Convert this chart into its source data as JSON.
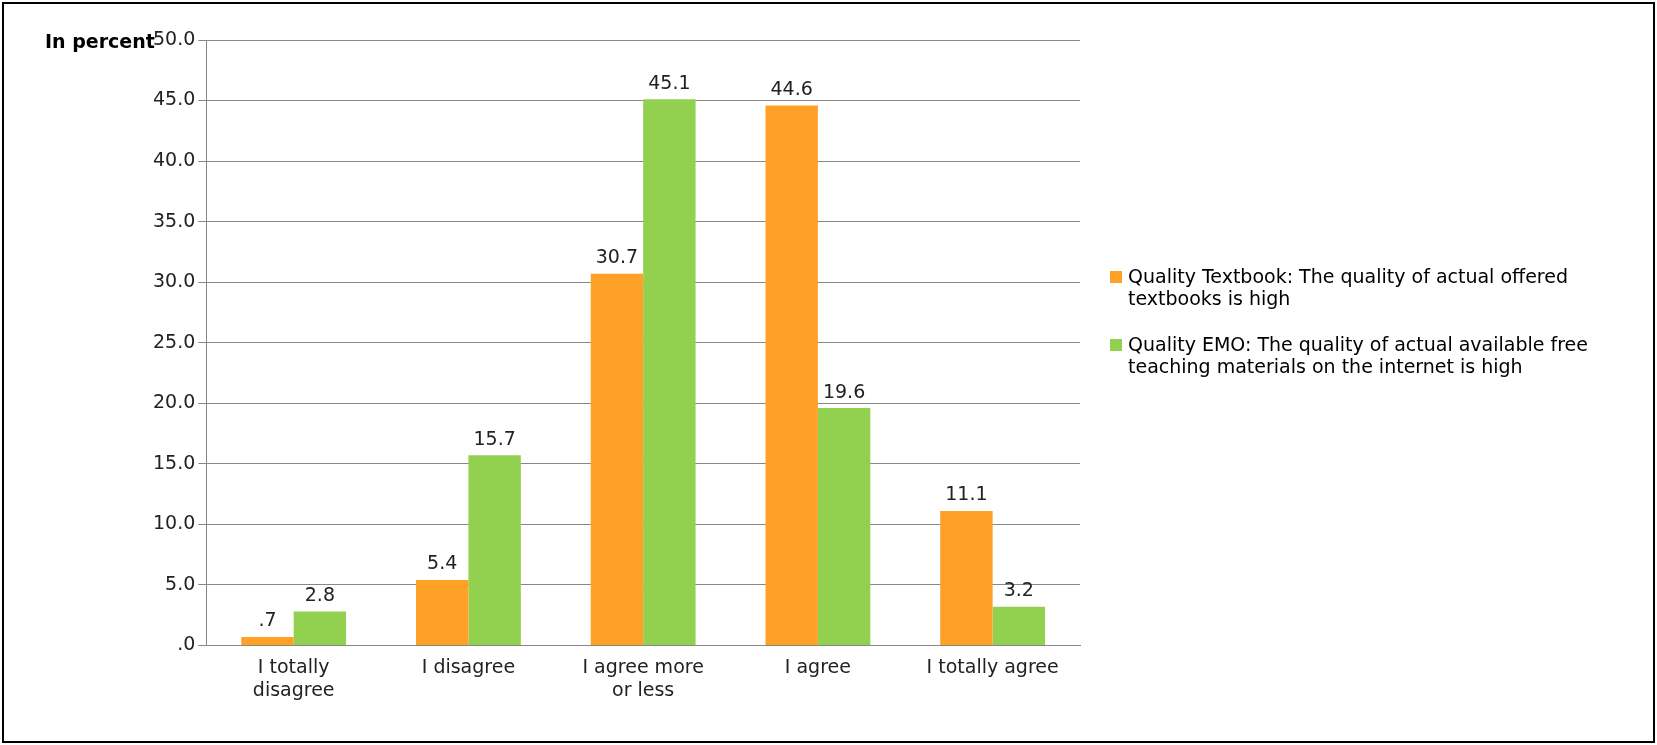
{
  "chart_data": {
    "type": "bar",
    "ylabel": "In percent",
    "categories": [
      "I totally disagree",
      "I disagree",
      "I agree more or less",
      "I agree",
      "I totally agree"
    ],
    "series": [
      {
        "name": "Quality Textbook: The quality of actual offered textbooks is high",
        "color": "#ffa126",
        "values": [
          0.7,
          5.4,
          30.7,
          44.6,
          11.1
        ],
        "value_labels": [
          ".7",
          "5.4",
          "30.7",
          "44.6",
          "11.1"
        ]
      },
      {
        "name": "Quality EMO: The quality of actual available free teaching materials on the internet is high",
        "color": "#92d050",
        "values": [
          2.8,
          15.7,
          45.1,
          19.6,
          3.2
        ],
        "value_labels": [
          "2.8",
          "15.7",
          "45.1",
          "19.6",
          "3.2"
        ]
      }
    ],
    "ylim": [
      0,
      50
    ],
    "yticks": [
      {
        "value": 0,
        "label": ".0"
      },
      {
        "value": 5,
        "label": "5.0"
      },
      {
        "value": 10,
        "label": "10.0"
      },
      {
        "value": 15,
        "label": "15.0"
      },
      {
        "value": 20,
        "label": "20.0"
      },
      {
        "value": 25,
        "label": "25.0"
      },
      {
        "value": 30,
        "label": "30.0"
      },
      {
        "value": 35,
        "label": "35.0"
      },
      {
        "value": 40,
        "label": "40.0"
      },
      {
        "value": 45,
        "label": "45.0"
      },
      {
        "value": 50,
        "label": "50.0"
      }
    ],
    "grid": "y",
    "legend": "right"
  }
}
